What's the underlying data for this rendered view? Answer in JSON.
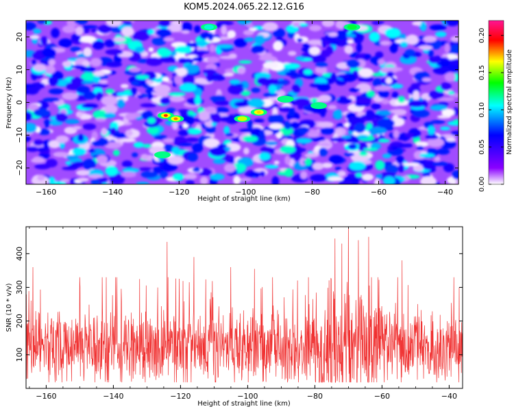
{
  "title": "KOM5.2024.065.22.12.G16",
  "chart_data": [
    {
      "type": "heatmap",
      "xlabel": "Height of straight line (km)",
      "ylabel": "Frequency (Hz)",
      "xlim": [
        -166,
        -36
      ],
      "ylim": [
        -25,
        25
      ],
      "x_ticks": [
        -160,
        -140,
        -120,
        -100,
        -80,
        -60,
        -40
      ],
      "y_ticks": [
        -20,
        -10,
        0,
        10,
        20
      ],
      "colorbar": {
        "label": "Normalized spectral amplitude",
        "range": [
          0,
          0.22
        ],
        "ticks": [
          "0.00",
          "0.05",
          "0.10",
          "0.15",
          "0.20"
        ],
        "colors": [
          "#ffffff",
          "#8a00ff",
          "#0000ff",
          "#00ffff",
          "#00ff00",
          "#ffff00",
          "#ff0000",
          "#ff1493"
        ]
      },
      "hotspots": [
        {
          "x": -124,
          "y": -4,
          "value": 0.19
        },
        {
          "x": -121,
          "y": -5,
          "value": 0.18
        },
        {
          "x": -101,
          "y": -5,
          "value": 0.16
        },
        {
          "x": -96,
          "y": -3,
          "value": 0.17
        },
        {
          "x": -88,
          "y": 1,
          "value": 0.12
        },
        {
          "x": -78,
          "y": -1,
          "value": 0.12
        },
        {
          "x": -68,
          "y": 23,
          "value": 0.13
        },
        {
          "x": -111,
          "y": 23,
          "value": 0.11
        },
        {
          "x": -125,
          "y": -16,
          "value": 0.12
        }
      ]
    },
    {
      "type": "line",
      "xlabel": "Height of straight line (km)",
      "ylabel": "SNR (10 * v/v)",
      "xlim": [
        -166,
        -36
      ],
      "ylim": [
        0,
        480
      ],
      "x_ticks": [
        -160,
        -140,
        -120,
        -100,
        -80,
        -60,
        -40
      ],
      "y_ticks": [
        100,
        200,
        300,
        400
      ],
      "color": "#f03030",
      "baseline": 120,
      "notable_peaks": [
        {
          "x": -164,
          "y": 360
        },
        {
          "x": -150,
          "y": 330
        },
        {
          "x": -124,
          "y": 435
        },
        {
          "x": -116,
          "y": 390
        },
        {
          "x": -105,
          "y": 360
        },
        {
          "x": -98,
          "y": 355
        },
        {
          "x": -74,
          "y": 445
        },
        {
          "x": -72,
          "y": 430
        },
        {
          "x": -70,
          "y": 485
        },
        {
          "x": -67,
          "y": 440
        },
        {
          "x": -64,
          "y": 450
        },
        {
          "x": -54,
          "y": 380
        },
        {
          "x": -37,
          "y": 300
        }
      ]
    }
  ]
}
